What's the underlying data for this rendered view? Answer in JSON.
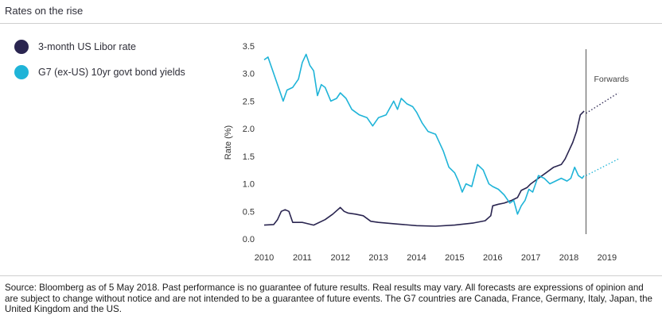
{
  "title": "Rates on the rise",
  "source": "Source: Bloomberg as of 5 May 2018. Past performance is no guarantee of future results. Real results may vary. All forecasts are expressions of opinion and are subject to change without notice and are not intended to be a guarantee of future events. The G7 countries are Canada, France, Germany, Italy, Japan, the United Kingdom and the US.",
  "colors": {
    "libor": "#2a2550",
    "g7": "#1fb4d8",
    "axis": "#555555",
    "forwards_line": "#777777"
  },
  "legend": [
    {
      "label": "3-month US Libor rate",
      "color": "#2a2550"
    },
    {
      "label": "G7 (ex-US) 10yr govt bond yields",
      "color": "#1fb4d8"
    }
  ],
  "chart_data": {
    "type": "line",
    "ylabel": "Rate (%)",
    "xlabel": "",
    "ylim": [
      0,
      3.5
    ],
    "xlim": [
      2010,
      2019.4
    ],
    "yticks": [
      "0.0",
      "0.5",
      "1.0",
      "1.5",
      "2.0",
      "2.5",
      "3.0",
      "3.5"
    ],
    "xticks": [
      "2010",
      "2011",
      "2012",
      "2013",
      "2014",
      "2015",
      "2016",
      "2017",
      "2018",
      "2019"
    ],
    "forwards_label": "Forwards",
    "forwards_x": 2018.45,
    "grid": false,
    "series": [
      {
        "name": "3-month US Libor rate",
        "x": [
          2010.0,
          2010.25,
          2010.35,
          2010.45,
          2010.55,
          2010.65,
          2010.75,
          2011.0,
          2011.3,
          2011.6,
          2011.8,
          2012.0,
          2012.1,
          2012.2,
          2012.4,
          2012.6,
          2012.8,
          2013.0,
          2013.5,
          2014.0,
          2014.5,
          2015.0,
          2015.5,
          2015.8,
          2015.95,
          2016.0,
          2016.15,
          2016.3,
          2016.5,
          2016.65,
          2016.75,
          2016.9,
          2017.0,
          2017.2,
          2017.4,
          2017.6,
          2017.8,
          2017.9,
          2018.0,
          2018.1,
          2018.2,
          2018.3,
          2018.4
        ],
        "y": [
          0.25,
          0.26,
          0.35,
          0.5,
          0.53,
          0.5,
          0.3,
          0.3,
          0.25,
          0.35,
          0.45,
          0.57,
          0.5,
          0.47,
          0.45,
          0.42,
          0.32,
          0.3,
          0.27,
          0.24,
          0.23,
          0.25,
          0.29,
          0.33,
          0.42,
          0.6,
          0.63,
          0.65,
          0.7,
          0.75,
          0.88,
          0.93,
          1.0,
          1.1,
          1.2,
          1.3,
          1.35,
          1.45,
          1.6,
          1.75,
          1.95,
          2.25,
          2.32
        ]
      },
      {
        "name": "G7 (ex-US) 10yr govt bond yields",
        "x": [
          2010.0,
          2010.1,
          2010.2,
          2010.35,
          2010.5,
          2010.6,
          2010.75,
          2010.9,
          2011.0,
          2011.1,
          2011.2,
          2011.3,
          2011.4,
          2011.5,
          2011.6,
          2011.75,
          2011.9,
          2012.0,
          2012.15,
          2012.3,
          2012.5,
          2012.7,
          2012.85,
          2013.0,
          2013.2,
          2013.4,
          2013.5,
          2013.6,
          2013.75,
          2013.9,
          2014.0,
          2014.15,
          2014.3,
          2014.5,
          2014.7,
          2014.85,
          2015.0,
          2015.1,
          2015.2,
          2015.3,
          2015.45,
          2015.6,
          2015.75,
          2015.9,
          2016.0,
          2016.15,
          2016.3,
          2016.45,
          2016.55,
          2016.65,
          2016.75,
          2016.85,
          2016.95,
          2017.05,
          2017.2,
          2017.35,
          2017.5,
          2017.65,
          2017.8,
          2017.95,
          2018.05,
          2018.15,
          2018.25,
          2018.35,
          2018.4
        ],
        "y": [
          3.25,
          3.3,
          3.1,
          2.8,
          2.5,
          2.7,
          2.75,
          2.9,
          3.2,
          3.35,
          3.15,
          3.05,
          2.6,
          2.8,
          2.75,
          2.5,
          2.55,
          2.65,
          2.55,
          2.35,
          2.25,
          2.2,
          2.05,
          2.2,
          2.25,
          2.5,
          2.35,
          2.55,
          2.45,
          2.4,
          2.3,
          2.1,
          1.95,
          1.9,
          1.6,
          1.3,
          1.2,
          1.05,
          0.85,
          1.0,
          0.95,
          1.35,
          1.25,
          1.0,
          0.95,
          0.9,
          0.8,
          0.65,
          0.7,
          0.45,
          0.6,
          0.7,
          0.9,
          0.85,
          1.15,
          1.1,
          1.0,
          1.05,
          1.1,
          1.05,
          1.1,
          1.3,
          1.15,
          1.1,
          1.15
        ]
      },
      {
        "name": "",
        "style": "dotted",
        "color_key": "libor",
        "x": [
          2018.45,
          2019.3
        ],
        "y": [
          2.28,
          2.65
        ]
      },
      {
        "name": "",
        "style": "dotted",
        "color_key": "g7",
        "x": [
          2018.45,
          2019.3
        ],
        "y": [
          1.15,
          1.45
        ]
      }
    ]
  }
}
